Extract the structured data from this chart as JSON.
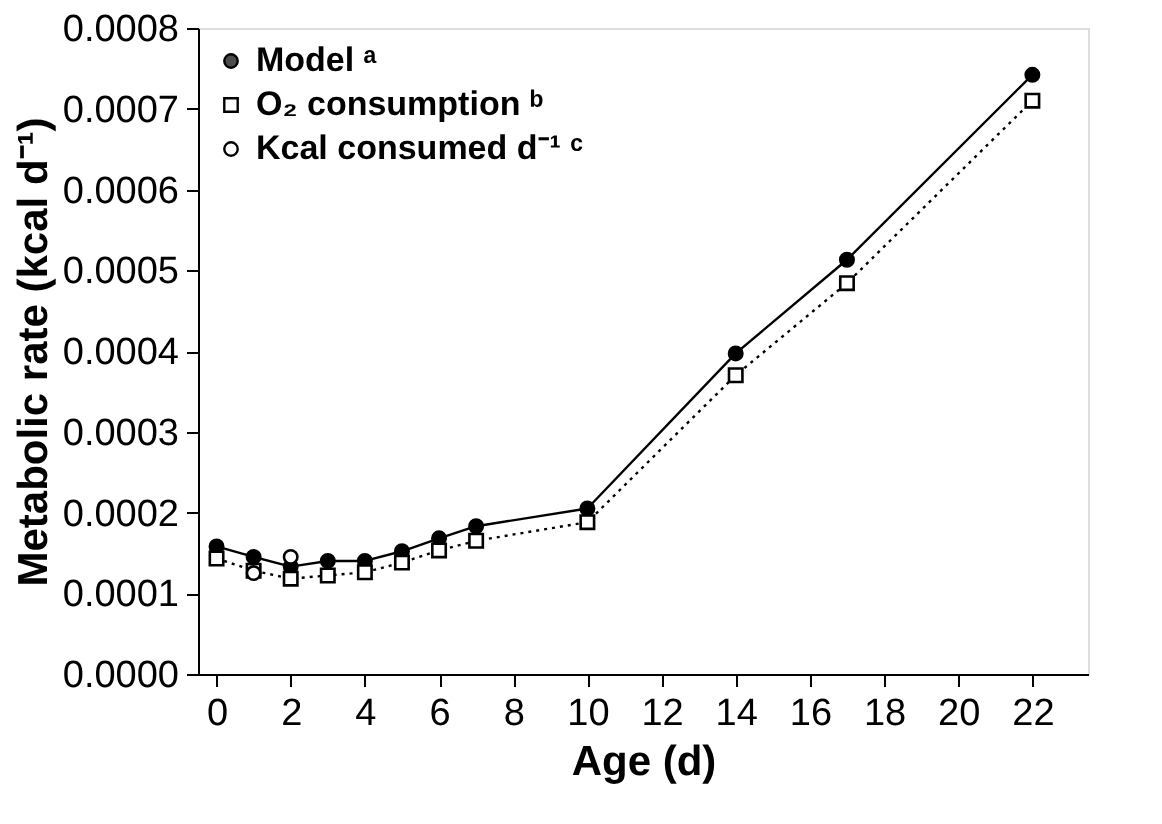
{
  "chart_data": {
    "type": "line",
    "xlabel": "Age (d)",
    "ylabel": "Metabolic rate (kcal d⁻¹)",
    "xlim": [
      -0.5,
      23.5
    ],
    "xticks": [
      0,
      2,
      4,
      6,
      8,
      10,
      12,
      14,
      16,
      18,
      20,
      22
    ],
    "ylim": [
      0,
      0.0008
    ],
    "yticks": [
      {
        "value": 0,
        "label": "0.0000"
      },
      {
        "value": 0.0001,
        "label": "0.0001"
      },
      {
        "value": 0.0002,
        "label": "0.0002"
      },
      {
        "value": 0.0003,
        "label": "0.0003"
      },
      {
        "value": 0.0004,
        "label": "0.0004"
      },
      {
        "value": 0.0005,
        "label": "0.0005"
      },
      {
        "value": 0.0006,
        "label": "0.0006"
      },
      {
        "value": 0.0007,
        "label": "0.0007"
      },
      {
        "value": 0.0008,
        "label": "0.0008"
      }
    ],
    "legend": "top left",
    "grid": false,
    "series": [
      {
        "name": "Model ᵃ",
        "color": "#000000",
        "marker": "circle",
        "line_style": "solid",
        "x": [
          0,
          1,
          2,
          3,
          4,
          5,
          6,
          7,
          10,
          14,
          17,
          22
        ],
        "values": [
          0.000158,
          0.000145,
          0.000133,
          0.00014,
          0.00014,
          0.000152,
          0.000168,
          0.000183,
          0.000205,
          0.000397,
          0.000513,
          0.000742
        ]
      },
      {
        "name": "O₂ consumption ᵇ",
        "color": "#000000",
        "marker": "square",
        "line_style": "dotted",
        "x": [
          0,
          1,
          2,
          3,
          4,
          5,
          6,
          7,
          10,
          14,
          17,
          22
        ],
        "values": [
          0.000143,
          0.000128,
          0.000118,
          0.000122,
          0.000126,
          0.000138,
          0.000153,
          0.000165,
          0.000188,
          0.00037,
          0.000484,
          0.00071
        ]
      },
      {
        "name": "Kcal consumed d⁻¹ ᶜ",
        "type": "scatter",
        "color": "#000000",
        "marker": "circle",
        "x": [
          1,
          2
        ],
        "values": [
          0.000125,
          0.000145
        ]
      }
    ]
  }
}
